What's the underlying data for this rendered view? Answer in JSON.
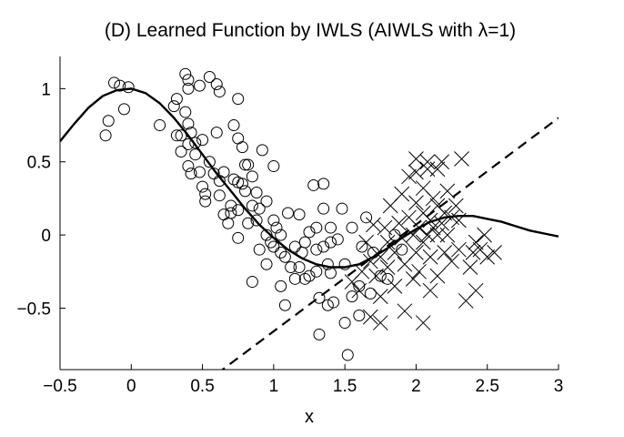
{
  "chart_data": {
    "type": "scatter",
    "title": "(D) Learned Function by IWLS (AIWLS with λ=1)",
    "xlabel": "x",
    "ylabel": "",
    "xlim": [
      -0.5,
      3
    ],
    "ylim": [
      -0.92,
      1.22
    ],
    "xticks": [
      -0.5,
      0,
      0.5,
      1,
      1.5,
      2,
      2.5,
      3
    ],
    "xtick_labels": [
      "−0.5",
      "0",
      "0.5",
      "1",
      "1.5",
      "2",
      "2.5",
      "3"
    ],
    "yticks": [
      -0.5,
      0,
      0.5,
      1
    ],
    "ytick_labels": [
      "−0.5",
      "0",
      "0.5",
      "1"
    ],
    "grid": false,
    "legend": "none",
    "series": [
      {
        "kind": "training-points",
        "marker": "o",
        "points": [
          [
            -0.18,
            0.68
          ],
          [
            -0.16,
            0.78
          ],
          [
            -0.12,
            1.04
          ],
          [
            -0.08,
            1.02
          ],
          [
            -0.05,
            0.86
          ],
          [
            -0.02,
            1.01
          ],
          [
            0.2,
            0.75
          ],
          [
            0.3,
            0.88
          ],
          [
            0.32,
            0.93
          ],
          [
            0.32,
            0.68
          ],
          [
            0.35,
            0.68
          ],
          [
            0.35,
            0.57
          ],
          [
            0.38,
            1.1
          ],
          [
            0.4,
            1.06
          ],
          [
            0.4,
            1.0
          ],
          [
            0.38,
            0.84
          ],
          [
            0.4,
            0.76
          ],
          [
            0.42,
            0.7
          ],
          [
            0.4,
            0.62
          ],
          [
            0.4,
            0.47
          ],
          [
            0.42,
            0.42
          ],
          [
            0.45,
            0.63
          ],
          [
            0.45,
            0.55
          ],
          [
            0.48,
            1.02
          ],
          [
            0.5,
            0.65
          ],
          [
            0.48,
            0.43
          ],
          [
            0.5,
            0.33
          ],
          [
            0.52,
            0.23
          ],
          [
            0.52,
            0.28
          ],
          [
            0.55,
            1.08
          ],
          [
            0.55,
            0.5
          ],
          [
            0.58,
            0.42
          ],
          [
            0.6,
            1.03
          ],
          [
            0.6,
            0.7
          ],
          [
            0.62,
            0.98
          ],
          [
            0.62,
            0.37
          ],
          [
            0.62,
            0.27
          ],
          [
            0.65,
            0.14
          ],
          [
            0.65,
            0.43
          ],
          [
            0.68,
            0.08
          ],
          [
            0.7,
            0.2
          ],
          [
            0.7,
            0.15
          ],
          [
            0.72,
            0.75
          ],
          [
            0.72,
            0.38
          ],
          [
            0.75,
            0.93
          ],
          [
            0.75,
            0.66
          ],
          [
            0.75,
            0.36
          ],
          [
            0.75,
            0.17
          ],
          [
            0.75,
            -0.02
          ],
          [
            0.78,
            0.6
          ],
          [
            0.78,
            0.35
          ],
          [
            0.8,
            0.3
          ],
          [
            0.8,
            0.48
          ],
          [
            0.82,
            0.48
          ],
          [
            0.82,
            0.08
          ],
          [
            0.85,
            0.4
          ],
          [
            0.85,
            0.2
          ],
          [
            0.85,
            -0.32
          ],
          [
            0.88,
            0.29
          ],
          [
            0.88,
            0.1
          ],
          [
            0.9,
            0.18
          ],
          [
            0.9,
            -0.1
          ],
          [
            0.92,
            0.58
          ],
          [
            0.95,
            0.23
          ],
          [
            0.95,
            0.0
          ],
          [
            0.95,
            -0.2
          ],
          [
            0.98,
            -0.05
          ],
          [
            1.0,
            0.1
          ],
          [
            1.0,
            0.47
          ],
          [
            1.0,
            -0.08
          ],
          [
            1.02,
            0.05
          ],
          [
            1.05,
            0.0
          ],
          [
            1.05,
            -0.12
          ],
          [
            1.05,
            -0.35
          ],
          [
            1.08,
            -0.15
          ],
          [
            1.08,
            -0.48
          ],
          [
            1.1,
            0.15
          ],
          [
            1.12,
            -0.22
          ],
          [
            1.15,
            -0.08
          ],
          [
            1.15,
            -0.3
          ],
          [
            1.18,
            0.14
          ],
          [
            1.18,
            -0.22
          ],
          [
            1.2,
            -0.12
          ],
          [
            1.22,
            -0.05
          ],
          [
            1.22,
            -0.3
          ],
          [
            1.25,
            -0.28
          ],
          [
            1.25,
            0.02
          ],
          [
            1.28,
            0.34
          ],
          [
            1.3,
            0.05
          ],
          [
            1.3,
            -0.1
          ],
          [
            1.3,
            -0.25
          ],
          [
            1.32,
            -0.43
          ],
          [
            1.32,
            -0.68
          ],
          [
            1.35,
            -0.08
          ],
          [
            1.35,
            0.35
          ],
          [
            1.35,
            0.18
          ],
          [
            1.38,
            -0.2
          ],
          [
            1.38,
            -0.48
          ],
          [
            1.4,
            0.05
          ],
          [
            1.4,
            -0.05
          ],
          [
            1.4,
            -0.26
          ],
          [
            1.42,
            -0.46
          ],
          [
            1.45,
            -0.03
          ],
          [
            1.48,
            0.18
          ],
          [
            1.5,
            -0.2
          ],
          [
            1.5,
            -0.6
          ],
          [
            1.52,
            -0.82
          ],
          [
            1.55,
            0.05
          ],
          [
            1.55,
            -0.42
          ],
          [
            1.6,
            -0.55
          ],
          [
            1.6,
            -0.35
          ],
          [
            1.62,
            -0.08
          ],
          [
            1.65,
            0.12
          ],
          [
            1.68,
            -0.4
          ],
          [
            1.7,
            -0.12
          ],
          [
            1.75,
            -0.28
          ],
          [
            1.8,
            -0.3
          ],
          [
            1.85,
            0.0
          ],
          [
            1.9,
            -0.1
          ]
        ]
      },
      {
        "kind": "test-points",
        "marker": "x",
        "points": [
          [
            1.55,
            -0.32
          ],
          [
            1.6,
            -0.38
          ],
          [
            1.62,
            -0.25
          ],
          [
            1.65,
            -0.05
          ],
          [
            1.68,
            -0.18
          ],
          [
            1.7,
            0.07
          ],
          [
            1.72,
            -0.28
          ],
          [
            1.75,
            -0.15
          ],
          [
            1.75,
            -0.42
          ],
          [
            1.78,
            0.05
          ],
          [
            1.8,
            -0.05
          ],
          [
            1.8,
            -0.22
          ],
          [
            1.82,
            0.2
          ],
          [
            1.85,
            -0.12
          ],
          [
            1.85,
            -0.35
          ],
          [
            1.88,
            0.08
          ],
          [
            1.9,
            -0.02
          ],
          [
            1.9,
            0.28
          ],
          [
            1.92,
            -0.2
          ],
          [
            1.92,
            -0.52
          ],
          [
            1.95,
            0.12
          ],
          [
            1.95,
            0.4
          ],
          [
            1.98,
            0.0
          ],
          [
            1.98,
            -0.3
          ],
          [
            2.0,
            0.22
          ],
          [
            2.0,
            -0.12
          ],
          [
            2.0,
            0.43
          ],
          [
            2.02,
            0.05
          ],
          [
            2.02,
            -0.25
          ],
          [
            2.05,
            0.15
          ],
          [
            2.05,
            -0.05
          ],
          [
            2.05,
            0.32
          ],
          [
            2.08,
            0.0
          ],
          [
            2.08,
            0.45
          ],
          [
            2.1,
            -0.15
          ],
          [
            2.1,
            0.1
          ],
          [
            2.1,
            -0.38
          ],
          [
            2.12,
            0.25
          ],
          [
            2.12,
            0.05
          ],
          [
            2.15,
            0.0
          ],
          [
            2.15,
            0.2
          ],
          [
            2.15,
            -0.28
          ],
          [
            2.18,
            0.08
          ],
          [
            2.18,
            0.5
          ],
          [
            2.2,
            -0.12
          ],
          [
            2.2,
            0.15
          ],
          [
            2.22,
            0.0
          ],
          [
            2.22,
            0.3
          ],
          [
            2.25,
            -0.18
          ],
          [
            2.25,
            0.12
          ],
          [
            2.28,
            0.2
          ],
          [
            2.3,
            -0.1
          ],
          [
            2.3,
            0.1
          ],
          [
            2.32,
            0.52
          ],
          [
            2.35,
            -0.45
          ],
          [
            2.38,
            -0.22
          ],
          [
            2.4,
            -0.12
          ],
          [
            2.42,
            -0.05
          ],
          [
            2.45,
            -0.1
          ],
          [
            2.5,
            -0.15
          ],
          [
            2.55,
            -0.12
          ],
          [
            1.68,
            -0.56
          ],
          [
            1.75,
            -0.6
          ],
          [
            2.05,
            -0.6
          ],
          [
            2.08,
            0.5
          ],
          [
            2.15,
            0.45
          ],
          [
            2.0,
            0.52
          ],
          [
            2.42,
            -0.38
          ],
          [
            2.48,
            0.0
          ]
        ]
      },
      {
        "kind": "learned-function",
        "style": "solid",
        "points": [
          [
            -0.5,
            0.64
          ],
          [
            -0.4,
            0.76
          ],
          [
            -0.3,
            0.87
          ],
          [
            -0.2,
            0.95
          ],
          [
            -0.1,
            0.99
          ],
          [
            0.0,
            1.0
          ],
          [
            0.1,
            0.97
          ],
          [
            0.2,
            0.9
          ],
          [
            0.3,
            0.8
          ],
          [
            0.4,
            0.68
          ],
          [
            0.5,
            0.55
          ],
          [
            0.6,
            0.42
          ],
          [
            0.7,
            0.3
          ],
          [
            0.8,
            0.18
          ],
          [
            0.9,
            0.07
          ],
          [
            1.0,
            -0.02
          ],
          [
            1.1,
            -0.1
          ],
          [
            1.2,
            -0.16
          ],
          [
            1.3,
            -0.2
          ],
          [
            1.4,
            -0.22
          ],
          [
            1.5,
            -0.22
          ],
          [
            1.6,
            -0.2
          ],
          [
            1.7,
            -0.15
          ],
          [
            1.8,
            -0.09
          ],
          [
            1.9,
            -0.02
          ],
          [
            2.0,
            0.04
          ],
          [
            2.1,
            0.09
          ],
          [
            2.2,
            0.12
          ],
          [
            2.3,
            0.13
          ],
          [
            2.4,
            0.13
          ],
          [
            2.5,
            0.11
          ],
          [
            2.6,
            0.09
          ],
          [
            2.7,
            0.06
          ],
          [
            2.8,
            0.03
          ],
          [
            2.9,
            0.01
          ],
          [
            3.0,
            -0.01
          ]
        ]
      },
      {
        "kind": "linear-fit",
        "style": "dashed",
        "points": [
          [
            0.6,
            -0.95
          ],
          [
            3.0,
            0.8
          ]
        ]
      }
    ]
  }
}
